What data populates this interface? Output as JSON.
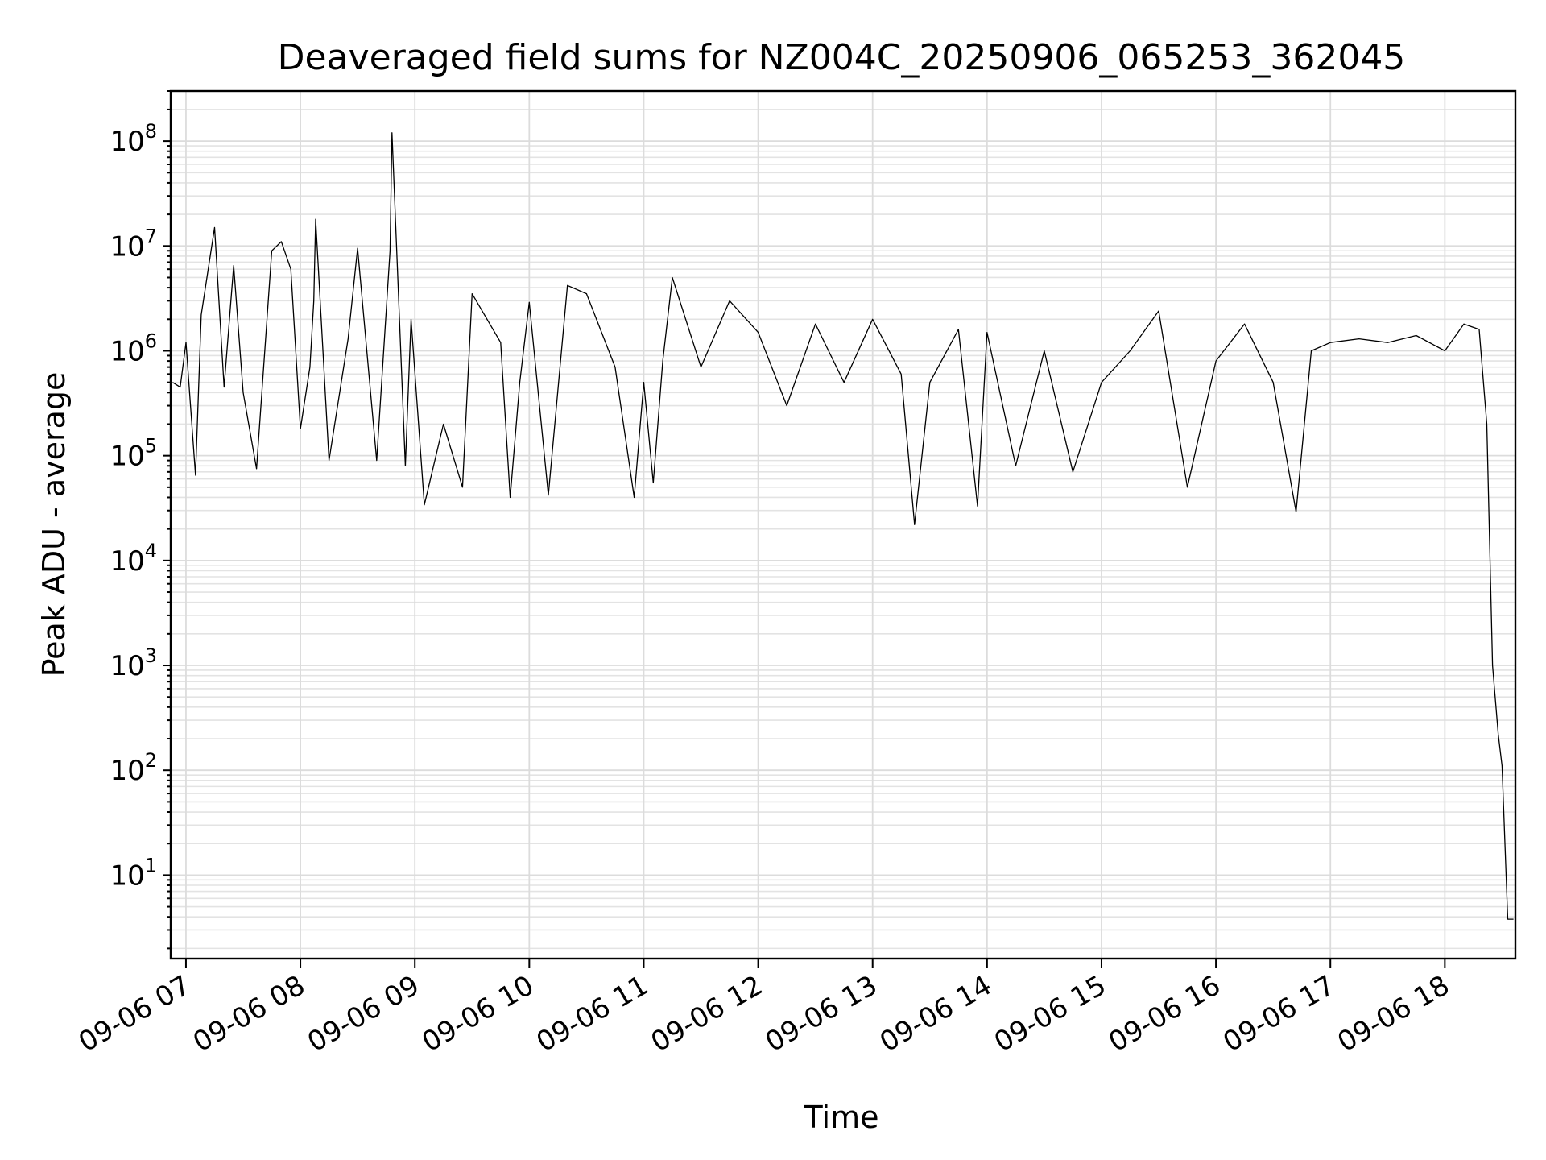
{
  "chart_data": {
    "type": "line",
    "title": "Deaveraged field sums for NZ004C_20250906_065253_362045",
    "xlabel": "Time",
    "ylabel": "Peak ADU - average",
    "yscale": "log",
    "ylim": [
      1.6,
      300000000
    ],
    "xlim": [
      "2025-09-06 06:52",
      "2025-09-06 18:37"
    ],
    "grid": true,
    "x_ticks": [
      "09-06 07",
      "09-06 08",
      "09-06 09",
      "09-06 10",
      "09-06 11",
      "09-06 12",
      "09-06 13",
      "09-06 14",
      "09-06 15",
      "09-06 16",
      "09-06 17",
      "09-06 18"
    ],
    "y_ticks": [
      {
        "base": "10",
        "exp": "1",
        "value": 10
      },
      {
        "base": "10",
        "exp": "2",
        "value": 100
      },
      {
        "base": "10",
        "exp": "3",
        "value": 1000
      },
      {
        "base": "10",
        "exp": "4",
        "value": 10000
      },
      {
        "base": "10",
        "exp": "5",
        "value": 100000
      },
      {
        "base": "10",
        "exp": "6",
        "value": 1000000
      },
      {
        "base": "10",
        "exp": "7",
        "value": 10000000
      },
      {
        "base": "10",
        "exp": "8",
        "value": 100000000
      }
    ],
    "series": [
      {
        "color": "#000000",
        "points": [
          [
            "2025-09-06 06:53",
            500000
          ],
          [
            "2025-09-06 06:57",
            450000
          ],
          [
            "2025-09-06 07:00",
            1200000
          ],
          [
            "2025-09-06 07:05",
            65000
          ],
          [
            "2025-09-06 07:08",
            2200000
          ],
          [
            "2025-09-06 07:15",
            15000000
          ],
          [
            "2025-09-06 07:20",
            450000
          ],
          [
            "2025-09-06 07:25",
            6500000
          ],
          [
            "2025-09-06 07:30",
            400000
          ],
          [
            "2025-09-06 07:37",
            75000
          ],
          [
            "2025-09-06 07:45",
            9000000
          ],
          [
            "2025-09-06 07:50",
            11000000
          ],
          [
            "2025-09-06 07:55",
            6000000
          ],
          [
            "2025-09-06 08:00",
            180000
          ],
          [
            "2025-09-06 08:05",
            700000
          ],
          [
            "2025-09-06 08:07",
            3000000
          ],
          [
            "2025-09-06 08:08",
            18000000
          ],
          [
            "2025-09-06 08:15",
            90000
          ],
          [
            "2025-09-06 08:25",
            1300000
          ],
          [
            "2025-09-06 08:30",
            9500000
          ],
          [
            "2025-09-06 08:40",
            90000
          ],
          [
            "2025-09-06 08:47",
            9000000
          ],
          [
            "2025-09-06 08:48",
            120000000
          ],
          [
            "2025-09-06 08:55",
            80000
          ],
          [
            "2025-09-06 08:58",
            2000000
          ],
          [
            "2025-09-06 09:05",
            34000
          ],
          [
            "2025-09-06 09:15",
            200000
          ],
          [
            "2025-09-06 09:25",
            50000
          ],
          [
            "2025-09-06 09:30",
            3500000
          ],
          [
            "2025-09-06 09:45",
            1200000
          ],
          [
            "2025-09-06 09:50",
            40000
          ],
          [
            "2025-09-06 09:55",
            500000
          ],
          [
            "2025-09-06 10:00",
            2900000
          ],
          [
            "2025-09-06 10:10",
            42000
          ],
          [
            "2025-09-06 10:20",
            4200000
          ],
          [
            "2025-09-06 10:30",
            3500000
          ],
          [
            "2025-09-06 10:45",
            700000
          ],
          [
            "2025-09-06 10:55",
            40000
          ],
          [
            "2025-09-06 11:00",
            500000
          ],
          [
            "2025-09-06 11:05",
            55000
          ],
          [
            "2025-09-06 11:10",
            800000
          ],
          [
            "2025-09-06 11:15",
            5000000
          ],
          [
            "2025-09-06 11:30",
            700000
          ],
          [
            "2025-09-06 11:45",
            3000000
          ],
          [
            "2025-09-06 12:00",
            1500000
          ],
          [
            "2025-09-06 12:15",
            300000
          ],
          [
            "2025-09-06 12:30",
            1800000
          ],
          [
            "2025-09-06 12:45",
            500000
          ],
          [
            "2025-09-06 13:00",
            2000000
          ],
          [
            "2025-09-06 13:15",
            600000
          ],
          [
            "2025-09-06 13:22",
            22000
          ],
          [
            "2025-09-06 13:30",
            500000
          ],
          [
            "2025-09-06 13:45",
            1600000
          ],
          [
            "2025-09-06 13:55",
            33000
          ],
          [
            "2025-09-06 14:00",
            1500000
          ],
          [
            "2025-09-06 14:15",
            80000
          ],
          [
            "2025-09-06 14:30",
            1000000
          ],
          [
            "2025-09-06 14:45",
            70000
          ],
          [
            "2025-09-06 15:00",
            500000
          ],
          [
            "2025-09-06 15:15",
            1000000
          ],
          [
            "2025-09-06 15:30",
            2400000
          ],
          [
            "2025-09-06 15:45",
            50000
          ],
          [
            "2025-09-06 16:00",
            800000
          ],
          [
            "2025-09-06 16:15",
            1800000
          ],
          [
            "2025-09-06 16:30",
            500000
          ],
          [
            "2025-09-06 16:42",
            29000
          ],
          [
            "2025-09-06 16:50",
            1000000
          ],
          [
            "2025-09-06 17:00",
            1200000
          ],
          [
            "2025-09-06 17:15",
            1300000
          ],
          [
            "2025-09-06 17:30",
            1200000
          ],
          [
            "2025-09-06 17:45",
            1400000
          ],
          [
            "2025-09-06 18:00",
            1000000
          ],
          [
            "2025-09-06 18:10",
            1800000
          ],
          [
            "2025-09-06 18:18",
            1600000
          ],
          [
            "2025-09-06 18:22",
            200000
          ],
          [
            "2025-09-06 18:25",
            1000
          ],
          [
            "2025-09-06 18:28",
            220
          ],
          [
            "2025-09-06 18:30",
            110
          ],
          [
            "2025-09-06 18:33",
            3.8
          ],
          [
            "2025-09-06 18:36",
            3.8
          ]
        ]
      }
    ]
  }
}
